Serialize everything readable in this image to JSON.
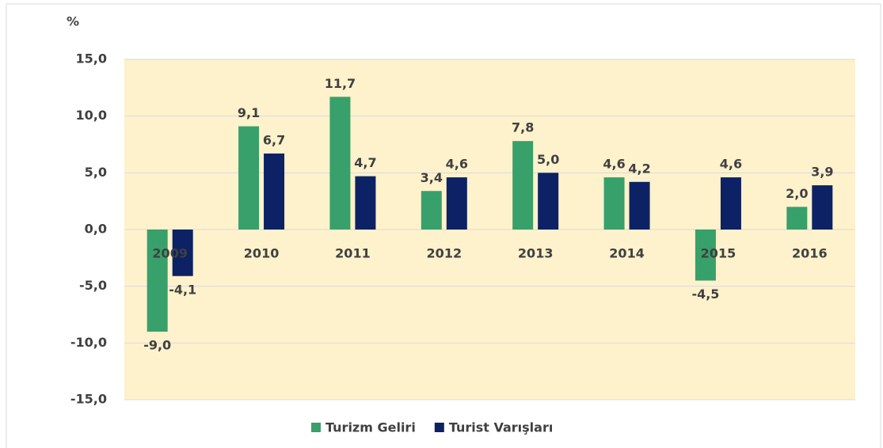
{
  "chart_data": {
    "type": "bar",
    "y_label": "%",
    "categories": [
      "2009",
      "2010",
      "2011",
      "2012",
      "2013",
      "2014",
      "2015",
      "2016"
    ],
    "series": [
      {
        "name": "Turizm Geliri",
        "color": "#38a06a",
        "values": [
          -9.0,
          9.1,
          11.7,
          3.4,
          7.8,
          4.6,
          -4.5,
          2.0
        ],
        "value_labels": [
          "-9,0",
          "9,1",
          "11,7",
          "3,4",
          "7,8",
          "4,6",
          "-4,5",
          "2,0"
        ]
      },
      {
        "name": "Turist Varışları",
        "color": "#0c2264",
        "values": [
          -4.1,
          6.7,
          4.7,
          4.6,
          5.0,
          4.2,
          4.6,
          3.9
        ],
        "value_labels": [
          "-4,1",
          "6,7",
          "4,7",
          "4,6",
          "5,0",
          "4,2",
          "4,6",
          "3,9"
        ]
      }
    ],
    "ylim": [
      -15,
      15
    ],
    "yticks": [
      {
        "value": -15,
        "label": "-15,0"
      },
      {
        "value": -10,
        "label": "-10,0"
      },
      {
        "value": -5,
        "label": "-5,0"
      },
      {
        "value": 0,
        "label": "0,0"
      },
      {
        "value": 5,
        "label": "5,0"
      },
      {
        "value": 10,
        "label": "10,0"
      },
      {
        "value": 15,
        "label": "15,0"
      }
    ],
    "grid": true,
    "plot_background": "#fef2cc",
    "legend": "bottom"
  }
}
